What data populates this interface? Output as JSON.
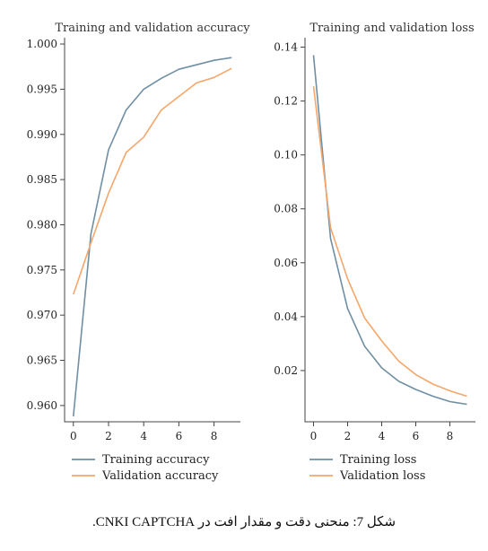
{
  "caption": "شکل 7: منحنی دقت و مقدار افت در CNKI CAPTCHA.",
  "colors": {
    "training": "#6f8fa3",
    "validation": "#f5a66b"
  },
  "chart_data": [
    {
      "type": "line",
      "title": "Training and validation accuracy",
      "x": [
        0,
        1,
        2,
        3,
        4,
        5,
        6,
        7,
        8,
        9
      ],
      "xlim": [
        -0.5,
        9.5
      ],
      "xticks": [
        "0",
        "2",
        "4",
        "6",
        "8"
      ],
      "xtick_values": [
        0,
        2,
        4,
        6,
        8
      ],
      "ylim": [
        0.9582,
        1.0007
      ],
      "yticks": [
        "0.960",
        "0.965",
        "0.970",
        "0.975",
        "0.980",
        "0.985",
        "0.990",
        "0.995",
        "1.000"
      ],
      "ytick_values": [
        0.96,
        0.965,
        0.97,
        0.975,
        0.98,
        0.985,
        0.99,
        0.995,
        1.0
      ],
      "legend_position": "bottom-left",
      "series": [
        {
          "name": "Training accuracy",
          "values": [
            0.9588,
            0.979,
            0.9883,
            0.9927,
            0.995,
            0.9962,
            0.9972,
            0.9977,
            0.9982,
            0.9985
          ]
        },
        {
          "name": "Validation accuracy",
          "values": [
            0.9723,
            0.978,
            0.9835,
            0.988,
            0.9897,
            0.9927,
            0.9942,
            0.9957,
            0.9963,
            0.9973
          ]
        }
      ]
    },
    {
      "type": "line",
      "title": "Training and validation loss",
      "x": [
        0,
        1,
        2,
        3,
        4,
        5,
        6,
        7,
        8,
        9
      ],
      "xlim": [
        -0.5,
        9.5
      ],
      "xticks": [
        "0",
        "2",
        "4",
        "6",
        "8"
      ],
      "xtick_values": [
        0,
        2,
        4,
        6,
        8
      ],
      "ylim": [
        0.001,
        0.1435
      ],
      "yticks": [
        "0.02",
        "0.04",
        "0.06",
        "0.08",
        "0.10",
        "0.12",
        "0.14"
      ],
      "ytick_values": [
        0.02,
        0.04,
        0.06,
        0.08,
        0.1,
        0.12,
        0.14
      ],
      "legend_position": "bottom-left",
      "series": [
        {
          "name": "Training loss",
          "values": [
            0.137,
            0.069,
            0.043,
            0.029,
            0.021,
            0.016,
            0.013,
            0.0105,
            0.0085,
            0.0075
          ]
        },
        {
          "name": "Validation loss",
          "values": [
            0.1255,
            0.073,
            0.054,
            0.0395,
            0.031,
            0.0235,
            0.0185,
            0.015,
            0.0125,
            0.0105
          ]
        }
      ]
    }
  ]
}
